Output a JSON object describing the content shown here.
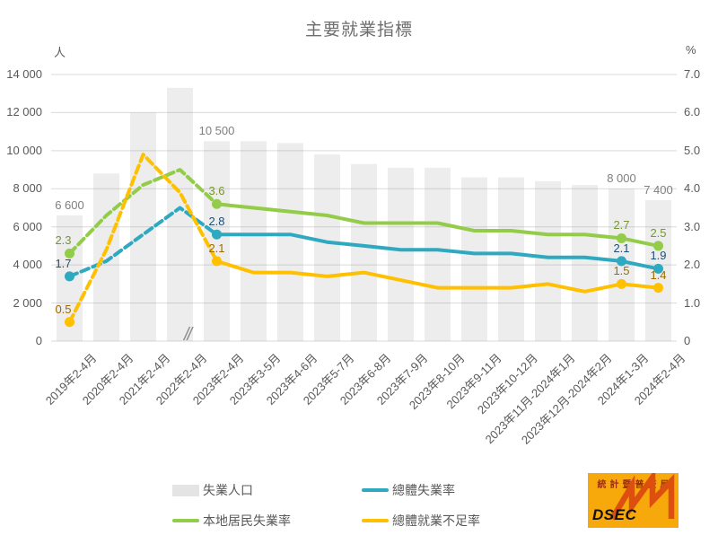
{
  "title": "主要就業指標",
  "axes": {
    "left": {
      "unit": "人",
      "ticks": [
        "14 000",
        "12 000",
        "10 000",
        "8 000",
        "6 000",
        "4 000",
        "2 000",
        "0"
      ]
    },
    "right": {
      "unit": "%",
      "ticks": [
        "7.0",
        "6.0",
        "5.0",
        "4.0",
        "3.0",
        "2.0",
        "1.0",
        "0"
      ]
    },
    "break_symbol": "//"
  },
  "chart_data": {
    "type": "combo bar+line, dual axis (persons left / % right)",
    "categories": [
      "2019年2-4月",
      "2020年2-4月",
      "2021年2-4月",
      "2022年2-4月",
      "2023年2-4月",
      "2023年3-5月",
      "2023年4-6月",
      "2023年5-7月",
      "2023年6-8月",
      "2023年7-9月",
      "2023年8-10月",
      "2023年9-11月",
      "2023年10-12月",
      "2023年11月-2024年1月",
      "2023年12月-2024年2月",
      "2024年1-3月",
      "2024年2-4月"
    ],
    "ylim_left": [
      0,
      14000
    ],
    "ylim_right": [
      0,
      7
    ],
    "grid": "horizontal only",
    "dashed_until_index": 4,
    "marker_indices": [
      0,
      4,
      15,
      16
    ],
    "series": [
      {
        "name": "失業人口",
        "type": "bar",
        "axis": "left",
        "color": "#e8e8e8",
        "values": [
          6600,
          8800,
          12000,
          13300,
          10500,
          10500,
          10400,
          9800,
          9300,
          9100,
          9100,
          8600,
          8600,
          8400,
          8200,
          8000,
          7400
        ],
        "labels": {
          "0": "6 600",
          "4": "10 500",
          "15": "8 000",
          "16": "7 400"
        },
        "label_color": "#7f7f7f"
      },
      {
        "name": "本地居民失業率",
        "type": "line",
        "axis": "right",
        "color": "#92cc49",
        "values": [
          2.3,
          3.3,
          4.1,
          4.5,
          3.6,
          3.5,
          3.4,
          3.3,
          3.1,
          3.1,
          3.1,
          2.9,
          2.9,
          2.8,
          2.8,
          2.7,
          2.5
        ],
        "labels": {
          "0": "2.3",
          "4": "3.6",
          "15": "2.7",
          "16": "2.5"
        },
        "label_color": "#76962f"
      },
      {
        "name": "總體失業率",
        "type": "line",
        "axis": "right",
        "color": "#2fa9bf",
        "values": [
          1.7,
          2.1,
          2.8,
          3.5,
          2.8,
          2.8,
          2.8,
          2.6,
          2.5,
          2.4,
          2.4,
          2.3,
          2.3,
          2.2,
          2.2,
          2.1,
          1.9
        ],
        "labels": {
          "0": "1.7",
          "4": "2.8",
          "15": "2.1",
          "16": "1.9"
        },
        "label_color": "#1f4e79"
      },
      {
        "name": "總體就業不足率",
        "type": "line",
        "axis": "right",
        "color": "#ffc000",
        "values": [
          0.5,
          2.4,
          4.9,
          3.9,
          2.1,
          1.8,
          1.8,
          1.7,
          1.8,
          1.6,
          1.4,
          1.4,
          1.4,
          1.5,
          1.3,
          1.5,
          1.4
        ],
        "labels": {
          "0": "0.5",
          "4": "2.1",
          "15": "1.5",
          "16": "1.4"
        },
        "label_color": "#9c6b00"
      }
    ]
  },
  "legend": {
    "items": [
      {
        "label": "失業人口",
        "swatch": "bar",
        "color": "#e4e4e4"
      },
      {
        "label": "總體失業率",
        "swatch": "line",
        "color": "#2fa9bf"
      },
      {
        "label": "本地居民失業率",
        "swatch": "line",
        "color": "#92cc49"
      },
      {
        "label": "總體就業不足率",
        "swatch": "line",
        "color": "#ffc000"
      }
    ]
  },
  "logo": {
    "org_name": "統計暨普查局",
    "abbr": "DSEC",
    "bg": "#f7a80a",
    "zigzag_color": "#dd4f0e"
  }
}
